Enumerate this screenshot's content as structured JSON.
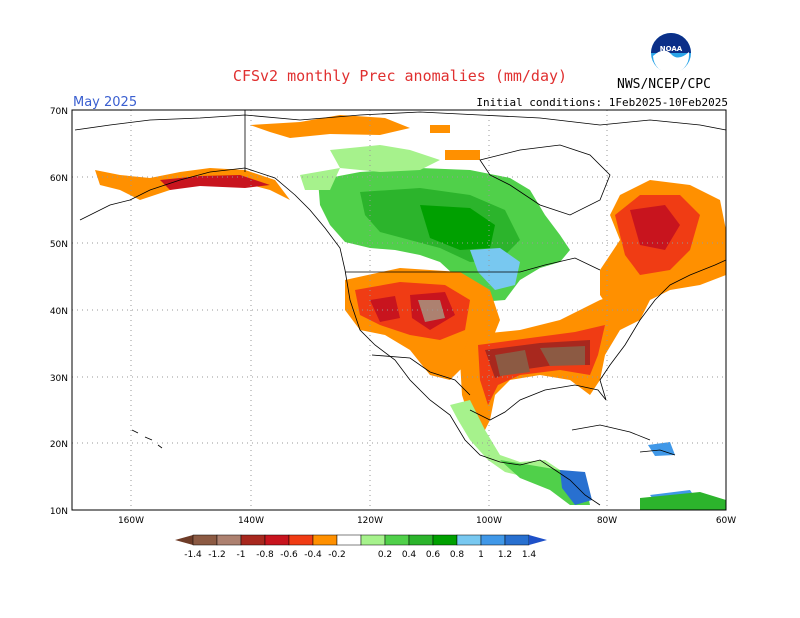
{
  "header": {
    "title": "CFSv2 monthly Prec anomalies (mm/day)",
    "month": "May 2025",
    "initial_conditions": "Initial conditions: 1Feb2025-10Feb2025",
    "agency": "NWS/NCEP/CPC",
    "logo_text": "NOAA"
  },
  "map": {
    "lat_labels": [
      "70N",
      "60N",
      "50N",
      "40N",
      "30N",
      "20N",
      "10N"
    ],
    "lon_labels": [
      "160W",
      "140W",
      "120W",
      "100W",
      "80W",
      "60W"
    ]
  },
  "legend": {
    "labels": [
      "-1.4",
      "-1.2",
      "-1",
      "-0.8",
      "-0.6",
      "-0.4",
      "-0.2",
      "0.2",
      "0.4",
      "0.6",
      "0.8",
      "1",
      "1.2",
      "1.4"
    ],
    "colors": [
      "#8c5a43",
      "#ad8170",
      "#a8281e",
      "#c8141e",
      "#f03c14",
      "#ff9000",
      "#ffffff",
      "#a6f28c",
      "#50d04a",
      "#2cb42c",
      "#00a000",
      "#78c8f0",
      "#4098e8",
      "#2870d0"
    ],
    "arrow_left_color": "#6e3c28",
    "arrow_right_color": "#1e50c8"
  }
}
